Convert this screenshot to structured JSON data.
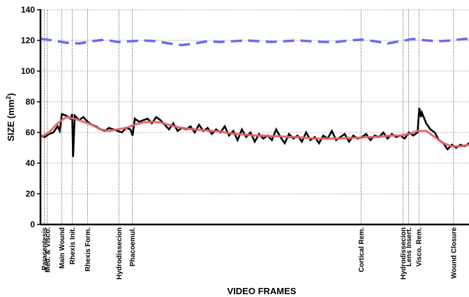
{
  "chart_data": {
    "type": "line",
    "title": "",
    "xlabel": "VIDEO FRAMES",
    "ylabel": "SIZE (mm",
    "ylabel_sup": "2",
    "ylabel_close": ")",
    "ylim": [
      0,
      140
    ],
    "yticks": [
      "0",
      "20",
      "40",
      "60",
      "80",
      "100",
      "120",
      "140"
    ],
    "grid": true,
    "xlim": [
      0,
      100
    ],
    "phases": [
      {
        "label": "Paracentesis",
        "x": 0.9
      },
      {
        "label": "Med. & Visco.",
        "x": 1.6
      },
      {
        "label": "Main Wound",
        "x": 5.0
      },
      {
        "label": "Rhexis Init.",
        "x": 7.4
      },
      {
        "label": "Rhexis Form.",
        "x": 11.0
      },
      {
        "label": "Hydrodissecion",
        "x": 18.3
      },
      {
        "label": "Phacoemul.",
        "x": 21.4
      },
      {
        "label": "Cortical Rem.",
        "x": 74.8
      },
      {
        "label": "Hydrodissecion",
        "x": 84.6
      },
      {
        "label": "Lens Insert.",
        "x": 85.9
      },
      {
        "label": "Visco. Rem.",
        "x": 88.3
      },
      {
        "label": "Wound Closure",
        "x": 96.4
      }
    ],
    "series": [
      {
        "color": "#6a6af5",
        "style": "dashed",
        "x": [
          0,
          3,
          6,
          9,
          12,
          15,
          18,
          21,
          24,
          27,
          30,
          33,
          36,
          39,
          42,
          45,
          48,
          51,
          54,
          57,
          60,
          63,
          66,
          69,
          72,
          75,
          78,
          81,
          84,
          87,
          90,
          93,
          96,
          99,
          100
        ],
        "values": [
          121,
          120,
          118.5,
          118,
          119.5,
          120.5,
          119,
          119.5,
          120,
          119.5,
          118,
          117,
          118,
          119.5,
          119,
          119.5,
          120,
          119.5,
          119,
          119.5,
          120,
          119.5,
          119,
          119,
          120,
          120.5,
          119.5,
          118,
          119.5,
          121,
          120,
          119.5,
          120,
          121,
          121
        ]
      },
      {
        "color": "#000000",
        "style": "raw",
        "x": [
          0,
          1,
          2,
          3,
          4,
          4.5,
          5,
          6,
          7,
          7.4,
          7.6,
          8,
          9,
          10,
          11,
          12,
          13,
          14,
          15,
          16,
          17,
          18,
          19,
          20,
          21,
          21.5,
          22,
          23,
          24,
          25,
          26,
          27,
          28,
          29,
          30,
          31,
          32,
          33,
          34,
          35,
          36,
          37,
          38,
          39,
          40,
          41,
          42,
          43,
          44,
          45,
          46,
          47,
          48,
          49,
          50,
          51,
          52,
          53,
          54,
          55,
          56,
          57,
          58,
          59,
          60,
          61,
          62,
          63,
          64,
          65,
          66,
          67,
          68,
          69,
          70,
          71,
          72,
          73,
          74,
          75,
          76,
          77,
          78,
          79,
          80,
          81,
          82,
          83,
          84,
          85,
          86,
          87,
          88,
          88.4,
          88.8,
          89,
          90,
          91,
          92,
          93,
          94,
          95,
          96,
          97,
          98,
          99,
          100
        ],
        "values": [
          58,
          57,
          59,
          60,
          64,
          61,
          72,
          71,
          69,
          72,
          44,
          71,
          68,
          70,
          67,
          65,
          64,
          62,
          61,
          63,
          62,
          61,
          60,
          63,
          62,
          58,
          69,
          67,
          68,
          69,
          66,
          70,
          68,
          65,
          62,
          66,
          61,
          63,
          62,
          64,
          60,
          65,
          61,
          63,
          59,
          62,
          60,
          64,
          58,
          61,
          55,
          62,
          57,
          60,
          54,
          59,
          56,
          58,
          55,
          62,
          57,
          53,
          59,
          56,
          58,
          54,
          60,
          55,
          57,
          53,
          58,
          56,
          61,
          55,
          57,
          59,
          54,
          58,
          56,
          57,
          59,
          55,
          58,
          57,
          60,
          56,
          59,
          57,
          58,
          56,
          60,
          58,
          60,
          76,
          70,
          73,
          66,
          62,
          60,
          55,
          53,
          49,
          52,
          50,
          52,
          51,
          53
        ]
      },
      {
        "color": "#e46464",
        "style": "smooth",
        "x": [
          0,
          2,
          4,
          6,
          8,
          10,
          12,
          14,
          16,
          18,
          20,
          22,
          24,
          26,
          28,
          30,
          32,
          34,
          36,
          38,
          40,
          42,
          44,
          46,
          48,
          50,
          52,
          54,
          56,
          58,
          60,
          62,
          64,
          66,
          68,
          70,
          72,
          74,
          76,
          78,
          80,
          82,
          84,
          86,
          88,
          90,
          92,
          94,
          96,
          98,
          100
        ],
        "values": [
          57,
          60,
          66,
          70,
          69,
          67,
          65,
          62,
          61,
          62,
          63,
          65,
          66.5,
          67,
          66.5,
          65,
          63.5,
          62.5,
          62,
          61.5,
          61,
          60.5,
          59.5,
          59,
          58.5,
          58,
          58,
          57.5,
          57.5,
          57,
          57,
          56.5,
          56,
          56,
          56,
          56,
          56.5,
          56.5,
          57,
          57,
          57.5,
          58,
          58,
          59,
          61,
          61,
          57,
          53,
          51,
          51,
          52
        ]
      }
    ]
  }
}
